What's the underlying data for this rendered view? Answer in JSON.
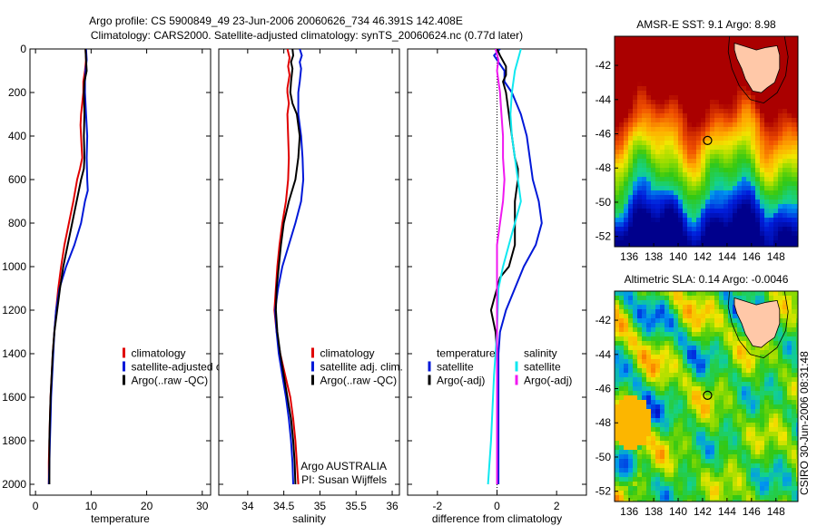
{
  "title_line1": "Argo profile: CS 5900849_49 23-Jun-2006 20060626_734 46.391S 142.408E",
  "title_line2": "Climatology: CARS2000. Satellite-adjusted climatology: synTS_20060624.nc (0.77d later)",
  "side_text": "CSIRO 30-Jun-2006 08:31:48",
  "colors": {
    "climatology": "#e00000",
    "satellite": "#0018d8",
    "argo": "#000000",
    "cyan": "#10e8f0",
    "magenta": "#f018f0",
    "land": "#ffc8a8"
  },
  "chart_data": [
    {
      "type": "line",
      "xlabel": "temperature",
      "xticks": [
        0,
        10,
        20,
        30
      ],
      "xlim": [
        -1,
        31.5
      ],
      "ylim": [
        0,
        2050
      ],
      "yticks": [
        0,
        200,
        400,
        600,
        800,
        1000,
        1200,
        1400,
        1600,
        1800,
        2000
      ],
      "y_reversed": true,
      "legend": [
        "climatology",
        "satellite-adjusted climatology",
        "Argo(..raw -QC)"
      ],
      "legend_position": "bottom-right",
      "series": [
        {
          "name": "climatology",
          "color": "#e00000",
          "points": [
            [
              9.0,
              0
            ],
            [
              9.1,
              50
            ],
            [
              8.9,
              100
            ],
            [
              8.6,
              150
            ],
            [
              8.6,
              200
            ],
            [
              8.4,
              250
            ],
            [
              8.2,
              300
            ],
            [
              8.1,
              350
            ],
            [
              8.2,
              400
            ],
            [
              8.3,
              450
            ],
            [
              8.4,
              500
            ],
            [
              8.0,
              550
            ],
            [
              7.5,
              600
            ],
            [
              6.8,
              700
            ],
            [
              6.0,
              800
            ],
            [
              5.2,
              900
            ],
            [
              4.6,
              1000
            ],
            [
              4.1,
              1100
            ],
            [
              3.7,
              1200
            ],
            [
              3.4,
              1300
            ],
            [
              3.1,
              1400
            ],
            [
              2.9,
              1500
            ],
            [
              2.7,
              1600
            ],
            [
              2.6,
              1700
            ],
            [
              2.5,
              1800
            ],
            [
              2.4,
              1900
            ],
            [
              2.4,
              2000
            ]
          ]
        },
        {
          "name": "satellite-adjusted climatology",
          "color": "#0018d8",
          "points": [
            [
              9.1,
              0
            ],
            [
              9.2,
              50
            ],
            [
              9.0,
              100
            ],
            [
              8.9,
              150
            ],
            [
              8.9,
              200
            ],
            [
              9.0,
              250
            ],
            [
              9.1,
              300
            ],
            [
              9.3,
              400
            ],
            [
              9.2,
              500
            ],
            [
              9.3,
              600
            ],
            [
              9.4,
              650
            ],
            [
              8.9,
              700
            ],
            [
              8.2,
              800
            ],
            [
              7.0,
              900
            ],
            [
              5.5,
              1000
            ],
            [
              4.3,
              1100
            ],
            [
              3.7,
              1200
            ],
            [
              3.4,
              1300
            ],
            [
              3.2,
              1400
            ],
            [
              3.0,
              1500
            ],
            [
              2.8,
              1600
            ],
            [
              2.7,
              1700
            ],
            [
              2.6,
              1800
            ],
            [
              2.5,
              1900
            ],
            [
              2.4,
              2000
            ]
          ]
        },
        {
          "name": "Argo(..raw -QC)",
          "color": "#000000",
          "points": [
            [
              9.0,
              0
            ],
            [
              9.1,
              50
            ],
            [
              9.2,
              100
            ],
            [
              8.8,
              150
            ],
            [
              8.7,
              200
            ],
            [
              8.8,
              300
            ],
            [
              8.7,
              400
            ],
            [
              8.8,
              500
            ],
            [
              8.7,
              550
            ],
            [
              8.2,
              600
            ],
            [
              7.4,
              700
            ],
            [
              6.6,
              800
            ],
            [
              5.8,
              900
            ],
            [
              5.0,
              1000
            ],
            [
              4.4,
              1100
            ],
            [
              3.9,
              1200
            ],
            [
              3.4,
              1300
            ],
            [
              3.1,
              1400
            ],
            [
              2.9,
              1500
            ],
            [
              2.7,
              1600
            ],
            [
              2.6,
              1700
            ],
            [
              2.5,
              1800
            ],
            [
              2.5,
              1900
            ],
            [
              2.5,
              2000
            ]
          ]
        }
      ]
    },
    {
      "type": "line",
      "xlabel": "salinity",
      "xticks": [
        34,
        34.5,
        35,
        35.5,
        36
      ],
      "xlim": [
        33.6,
        36.1
      ],
      "ylim": [
        0,
        2050
      ],
      "y_reversed": true,
      "legend": [
        "climatology",
        "satellite adj. clim.",
        "Argo(..raw -QC)"
      ],
      "legend_position": "bottom-right",
      "annotation": [
        "Argo AUSTRALIA",
        "PI: Susan Wijffels"
      ],
      "series": [
        {
          "name": "climatology",
          "color": "#e00000",
          "points": [
            [
              34.55,
              0
            ],
            [
              34.58,
              40
            ],
            [
              34.56,
              80
            ],
            [
              34.58,
              120
            ],
            [
              34.55,
              180
            ],
            [
              34.55,
              200
            ],
            [
              34.57,
              250
            ],
            [
              34.55,
              300
            ],
            [
              34.56,
              400
            ],
            [
              34.57,
              500
            ],
            [
              34.56,
              600
            ],
            [
              34.53,
              700
            ],
            [
              34.48,
              800
            ],
            [
              34.44,
              900
            ],
            [
              34.41,
              1000
            ],
            [
              34.39,
              1100
            ],
            [
              34.37,
              1200
            ],
            [
              34.4,
              1300
            ],
            [
              34.45,
              1400
            ],
            [
              34.52,
              1500
            ],
            [
              34.59,
              1600
            ],
            [
              34.63,
              1700
            ],
            [
              34.66,
              1800
            ],
            [
              34.68,
              1900
            ],
            [
              34.7,
              2000
            ]
          ]
        },
        {
          "name": "satellite adj. clim.",
          "color": "#0018d8",
          "points": [
            [
              34.72,
              0
            ],
            [
              34.75,
              30
            ],
            [
              34.72,
              60
            ],
            [
              34.74,
              90
            ],
            [
              34.72,
              150
            ],
            [
              34.7,
              200
            ],
            [
              34.7,
              300
            ],
            [
              34.74,
              400
            ],
            [
              34.76,
              500
            ],
            [
              34.77,
              600
            ],
            [
              34.74,
              700
            ],
            [
              34.66,
              800
            ],
            [
              34.57,
              900
            ],
            [
              34.48,
              1000
            ],
            [
              34.42,
              1100
            ],
            [
              34.38,
              1200
            ],
            [
              34.4,
              1300
            ],
            [
              34.43,
              1400
            ],
            [
              34.48,
              1500
            ],
            [
              34.53,
              1600
            ],
            [
              34.57,
              1700
            ],
            [
              34.6,
              1800
            ],
            [
              34.62,
              1900
            ],
            [
              34.63,
              2000
            ]
          ]
        },
        {
          "name": "Argo(..raw -QC)",
          "color": "#000000",
          "points": [
            [
              34.62,
              0
            ],
            [
              34.63,
              30
            ],
            [
              34.6,
              60
            ],
            [
              34.62,
              90
            ],
            [
              34.6,
              150
            ],
            [
              34.59,
              200
            ],
            [
              34.62,
              250
            ],
            [
              34.68,
              300
            ],
            [
              34.72,
              400
            ],
            [
              34.7,
              500
            ],
            [
              34.66,
              600
            ],
            [
              34.57,
              700
            ],
            [
              34.5,
              800
            ],
            [
              34.46,
              900
            ],
            [
              34.43,
              1000
            ],
            [
              34.4,
              1100
            ],
            [
              34.39,
              1200
            ],
            [
              34.41,
              1300
            ],
            [
              34.45,
              1400
            ],
            [
              34.5,
              1500
            ],
            [
              34.55,
              1600
            ],
            [
              34.6,
              1700
            ],
            [
              34.63,
              1800
            ],
            [
              34.65,
              1900
            ],
            [
              34.66,
              2000
            ]
          ]
        }
      ]
    },
    {
      "type": "line",
      "xlabel": "difference from climatology",
      "xticks": [
        -2,
        0,
        2
      ],
      "xlim": [
        -3.0,
        3.0
      ],
      "ylim": [
        0,
        2050
      ],
      "y_reversed": true,
      "legend_groups": [
        {
          "title": "temperature",
          "items": [
            "satellite",
            "Argo(-adj)"
          ]
        },
        {
          "title": "salinity",
          "items": [
            "satellite",
            "Argo(-adj)"
          ]
        }
      ],
      "legend_position": "bottom",
      "series": [
        {
          "name": "temperature satellite",
          "color": "#0018d8",
          "points": [
            [
              0.1,
              0
            ],
            [
              -0.1,
              30
            ],
            [
              0.05,
              60
            ],
            [
              0.25,
              100
            ],
            [
              0.25,
              150
            ],
            [
              0.5,
              200
            ],
            [
              0.8,
              300
            ],
            [
              1.0,
              400
            ],
            [
              1.1,
              500
            ],
            [
              1.2,
              600
            ],
            [
              1.4,
              700
            ],
            [
              1.5,
              800
            ],
            [
              1.3,
              900
            ],
            [
              0.9,
              1000
            ],
            [
              0.6,
              1100
            ],
            [
              0.3,
              1200
            ],
            [
              0.1,
              1300
            ],
            [
              0.05,
              1400
            ],
            [
              0.05,
              1600
            ],
            [
              0.05,
              1800
            ],
            [
              0.05,
              2000
            ]
          ]
        },
        {
          "name": "temperature Argo(-adj)",
          "color": "#000000",
          "points": [
            [
              0.0,
              0
            ],
            [
              0.1,
              30
            ],
            [
              0.3,
              80
            ],
            [
              0.3,
              120
            ],
            [
              0.2,
              150
            ],
            [
              0.3,
              200
            ],
            [
              0.4,
              300
            ],
            [
              0.5,
              400
            ],
            [
              0.6,
              500
            ],
            [
              0.7,
              550
            ],
            [
              0.7,
              600
            ],
            [
              0.6,
              700
            ],
            [
              0.6,
              800
            ],
            [
              0.6,
              900
            ],
            [
              0.4,
              1000
            ],
            [
              0.1,
              1050
            ],
            [
              -0.1,
              1150
            ],
            [
              -0.2,
              1200
            ],
            [
              -0.05,
              1300
            ],
            [
              0.0,
              1400
            ],
            [
              0.0,
              2000
            ]
          ]
        },
        {
          "name": "salinity satellite",
          "color": "#10e8f0",
          "points": [
            [
              0.8,
              0
            ],
            [
              0.7,
              50
            ],
            [
              0.6,
              100
            ],
            [
              0.5,
              200
            ],
            [
              0.45,
              300
            ],
            [
              0.5,
              400
            ],
            [
              0.6,
              500
            ],
            [
              0.7,
              600
            ],
            [
              0.8,
              700
            ],
            [
              0.6,
              800
            ],
            [
              0.4,
              900
            ],
            [
              0.2,
              1000
            ],
            [
              0.05,
              1100
            ],
            [
              0.0,
              1300
            ],
            [
              -0.1,
              1500
            ],
            [
              -0.2,
              1800
            ],
            [
              -0.3,
              2000
            ]
          ]
        },
        {
          "name": "salinity Argo(-adj)",
          "color": "#f018f0",
          "points": [
            [
              -0.05,
              0
            ],
            [
              0.05,
              50
            ],
            [
              0.0,
              100
            ],
            [
              0.1,
              200
            ],
            [
              0.15,
              300
            ],
            [
              0.2,
              400
            ],
            [
              0.2,
              500
            ],
            [
              0.25,
              600
            ],
            [
              0.2,
              700
            ],
            [
              0.1,
              800
            ],
            [
              0.0,
              900
            ],
            [
              0.0,
              1000
            ],
            [
              0.0,
              1200
            ],
            [
              0.0,
              1500
            ],
            [
              0.0,
              2000
            ]
          ]
        }
      ]
    },
    {
      "type": "heatmap",
      "title": "AMSR-E SST: 9.1 Argo: 8.98",
      "xticks": [
        136,
        138,
        140,
        142,
        144,
        146,
        148
      ],
      "yticks": [
        -42,
        -44,
        -46,
        -48,
        -50,
        -52
      ],
      "xlim": [
        134.8,
        149.8
      ],
      "ylim": [
        -52.6,
        -40.3
      ],
      "argo_position": [
        142.408,
        -46.391
      ]
    },
    {
      "type": "heatmap",
      "title": "Altimetric SLA: 0.14 Argo: -0.0046",
      "xticks": [
        136,
        138,
        140,
        142,
        144,
        146,
        148
      ],
      "yticks": [
        -42,
        -44,
        -46,
        -48,
        -50,
        -52
      ],
      "xlim": [
        134.8,
        149.8
      ],
      "ylim": [
        -52.6,
        -40.3
      ],
      "argo_position": [
        142.408,
        -46.391
      ]
    }
  ]
}
